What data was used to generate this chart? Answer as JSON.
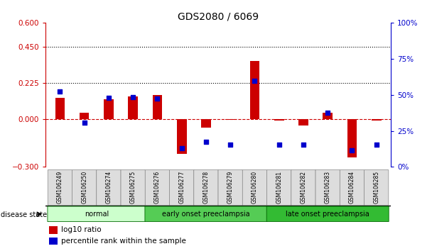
{
  "title": "GDS2080 / 6069",
  "samples": [
    "GSM106249",
    "GSM106250",
    "GSM106274",
    "GSM106275",
    "GSM106276",
    "GSM106277",
    "GSM106278",
    "GSM106279",
    "GSM106280",
    "GSM106281",
    "GSM106282",
    "GSM106283",
    "GSM106284",
    "GSM106285"
  ],
  "log10_ratio": [
    0.13,
    0.04,
    0.12,
    0.14,
    0.15,
    -0.22,
    -0.055,
    -0.005,
    0.36,
    -0.01,
    -0.04,
    0.04,
    -0.24,
    -0.01
  ],
  "percentile_rank": [
    52.5,
    30.5,
    48.0,
    48.5,
    47.5,
    13.0,
    17.5,
    15.5,
    59.5,
    15.5,
    15.5,
    37.5,
    11.5,
    15.5
  ],
  "ylim_left": [
    -0.3,
    0.6
  ],
  "ylim_right": [
    0,
    100
  ],
  "yticks_left": [
    -0.3,
    0.0,
    0.225,
    0.45,
    0.6
  ],
  "yticks_right": [
    0,
    25,
    50,
    75,
    100
  ],
  "hlines": [
    0.225,
    0.45
  ],
  "bar_color": "#cc0000",
  "dot_color": "#0000cc",
  "dashed_color": "#cc0000",
  "groups": [
    {
      "label": "normal",
      "start": 0,
      "end": 3,
      "color": "#ccffcc"
    },
    {
      "label": "early onset preeclampsia",
      "start": 4,
      "end": 8,
      "color": "#55cc55"
    },
    {
      "label": "late onset preeclampsia",
      "start": 9,
      "end": 13,
      "color": "#33bb33"
    }
  ],
  "disease_state_label": "disease state",
  "legend_bar_label": "log10 ratio",
  "legend_dot_label": "percentile rank within the sample",
  "title_fontsize": 10,
  "tick_fontsize": 7.5,
  "label_fontsize": 8
}
